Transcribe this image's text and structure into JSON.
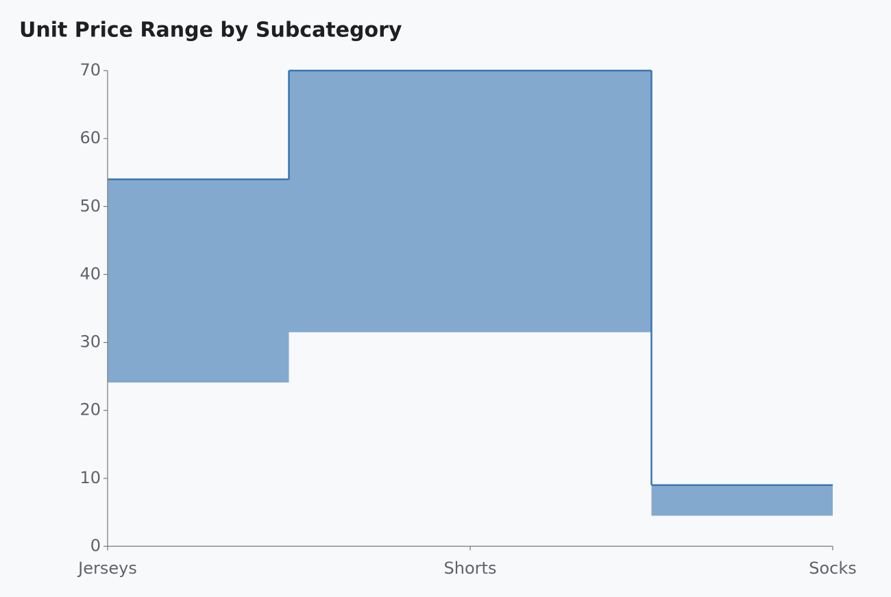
{
  "chart_data": {
    "type": "range-step-area",
    "title": "Unit Price Range by Subcategory",
    "categories": [
      "Jerseys",
      "Shorts",
      "Socks"
    ],
    "low": [
      24.1,
      31.5,
      4.5
    ],
    "high": [
      54,
      70,
      9
    ],
    "color": "#83a9cf",
    "line_color": "#3a75b0",
    "ylim": [
      0,
      70
    ],
    "yticks": [
      0,
      10,
      20,
      30,
      40,
      50,
      60,
      70
    ],
    "grid": false
  }
}
